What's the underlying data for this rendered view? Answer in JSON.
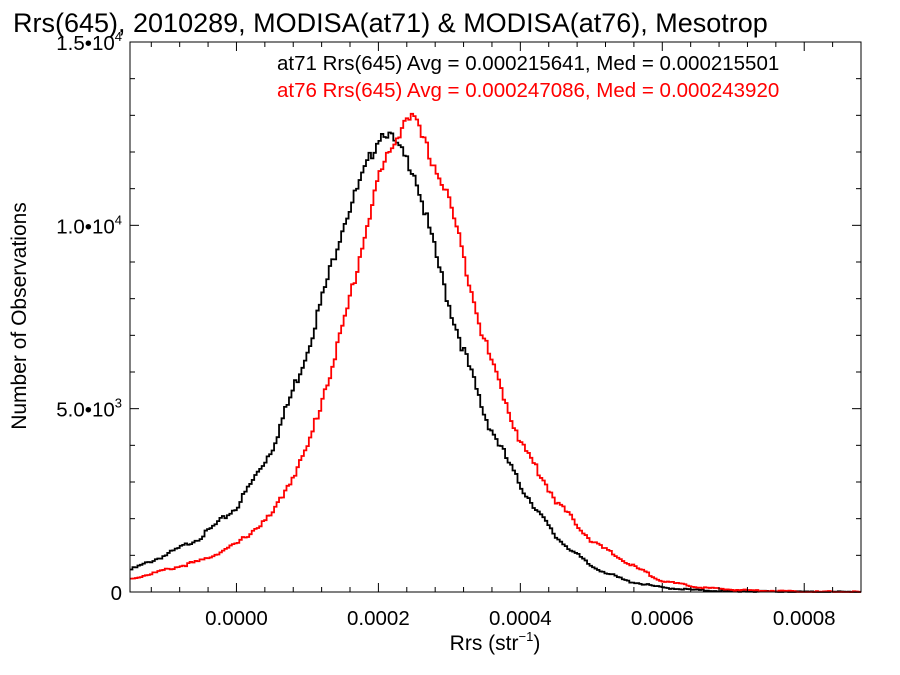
{
  "chart_data": {
    "type": "step",
    "title": "Rrs(645), 2010289, MODISA(at71) & MODISA(at76), Mesotrop",
    "xlabel": {
      "main": "Rrs (str",
      "sup": "−1",
      "close": ")"
    },
    "ylabel": "Number of Observations",
    "xlim": [
      -0.00015,
      0.00088
    ],
    "ylim": [
      0,
      15000
    ],
    "x_ticks": [
      {
        "value": 0.0,
        "label": "0.0000"
      },
      {
        "value": 0.0002,
        "label": "0.0002"
      },
      {
        "value": 0.0004,
        "label": "0.0004"
      },
      {
        "value": 0.0006,
        "label": "0.0006"
      },
      {
        "value": 0.0008,
        "label": "0.0008"
      }
    ],
    "y_ticks": [
      {
        "value": 0,
        "label": "0",
        "sup": ""
      },
      {
        "value": 5000,
        "label": "5.0•10",
        "sup": "3"
      },
      {
        "value": 10000,
        "label": "1.0•10",
        "sup": "4"
      },
      {
        "value": 15000,
        "label": "1.5•10",
        "sup": "4"
      }
    ],
    "annotations": [
      {
        "text": "at71 Rrs(645) Avg = 0.000215641, Med = 0.000215501",
        "color": "#000000"
      },
      {
        "text": "at76 Rrs(645) Avg = 0.000247086, Med = 0.000243920",
        "color": "#ff0000"
      }
    ],
    "series": [
      {
        "color": "#000000",
        "x": [
          -0.00015,
          -0.0001,
          -5e-05,
          0.0,
          5e-05,
          0.0001,
          0.00015,
          0.0002,
          0.00021,
          0.00025,
          0.0003,
          0.00035,
          0.0004,
          0.00045,
          0.0005,
          0.00055,
          0.0006,
          0.00065,
          0.0007,
          0.0008,
          0.00088
        ],
        "y": [
          600,
          1000,
          1500,
          2300,
          3900,
          6600,
          10000,
          12400,
          12600,
          11500,
          7800,
          4800,
          2900,
          1500,
          700,
          300,
          120,
          50,
          20,
          5,
          0
        ]
      },
      {
        "color": "#ff0000",
        "x": [
          -0.00015,
          -0.0001,
          -5e-05,
          0.0,
          5e-05,
          0.0001,
          0.00015,
          0.0002,
          0.00024,
          0.00025,
          0.0003,
          0.00035,
          0.0004,
          0.00045,
          0.0005,
          0.00055,
          0.0006,
          0.00065,
          0.0007,
          0.0008,
          0.00088
        ],
        "y": [
          350,
          600,
          850,
          1300,
          2100,
          3900,
          7200,
          11300,
          13000,
          12900,
          10700,
          6800,
          4100,
          2500,
          1400,
          800,
          300,
          130,
          60,
          10,
          0
        ]
      }
    ]
  }
}
